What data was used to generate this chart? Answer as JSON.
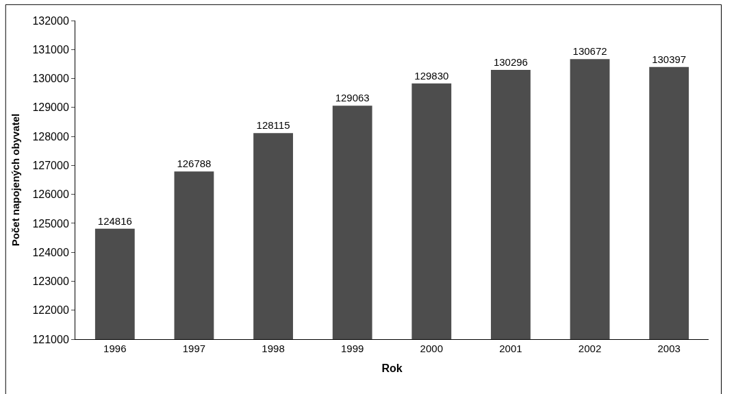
{
  "chart_data": {
    "type": "bar",
    "xlabel": "Rok",
    "ylabel": "Počet napojených obyvatel",
    "categories": [
      "1996",
      "1997",
      "1998",
      "1999",
      "2000",
      "2001",
      "2002",
      "2003"
    ],
    "values": [
      124816,
      126788,
      128115,
      129063,
      129830,
      130296,
      130672,
      130397
    ],
    "color": "#4d4d4d",
    "ylim": [
      121000,
      132000
    ],
    "yticks": [
      121000,
      122000,
      123000,
      124000,
      125000,
      126000,
      127000,
      128000,
      129000,
      130000,
      131000,
      132000
    ],
    "data_labels": true
  }
}
